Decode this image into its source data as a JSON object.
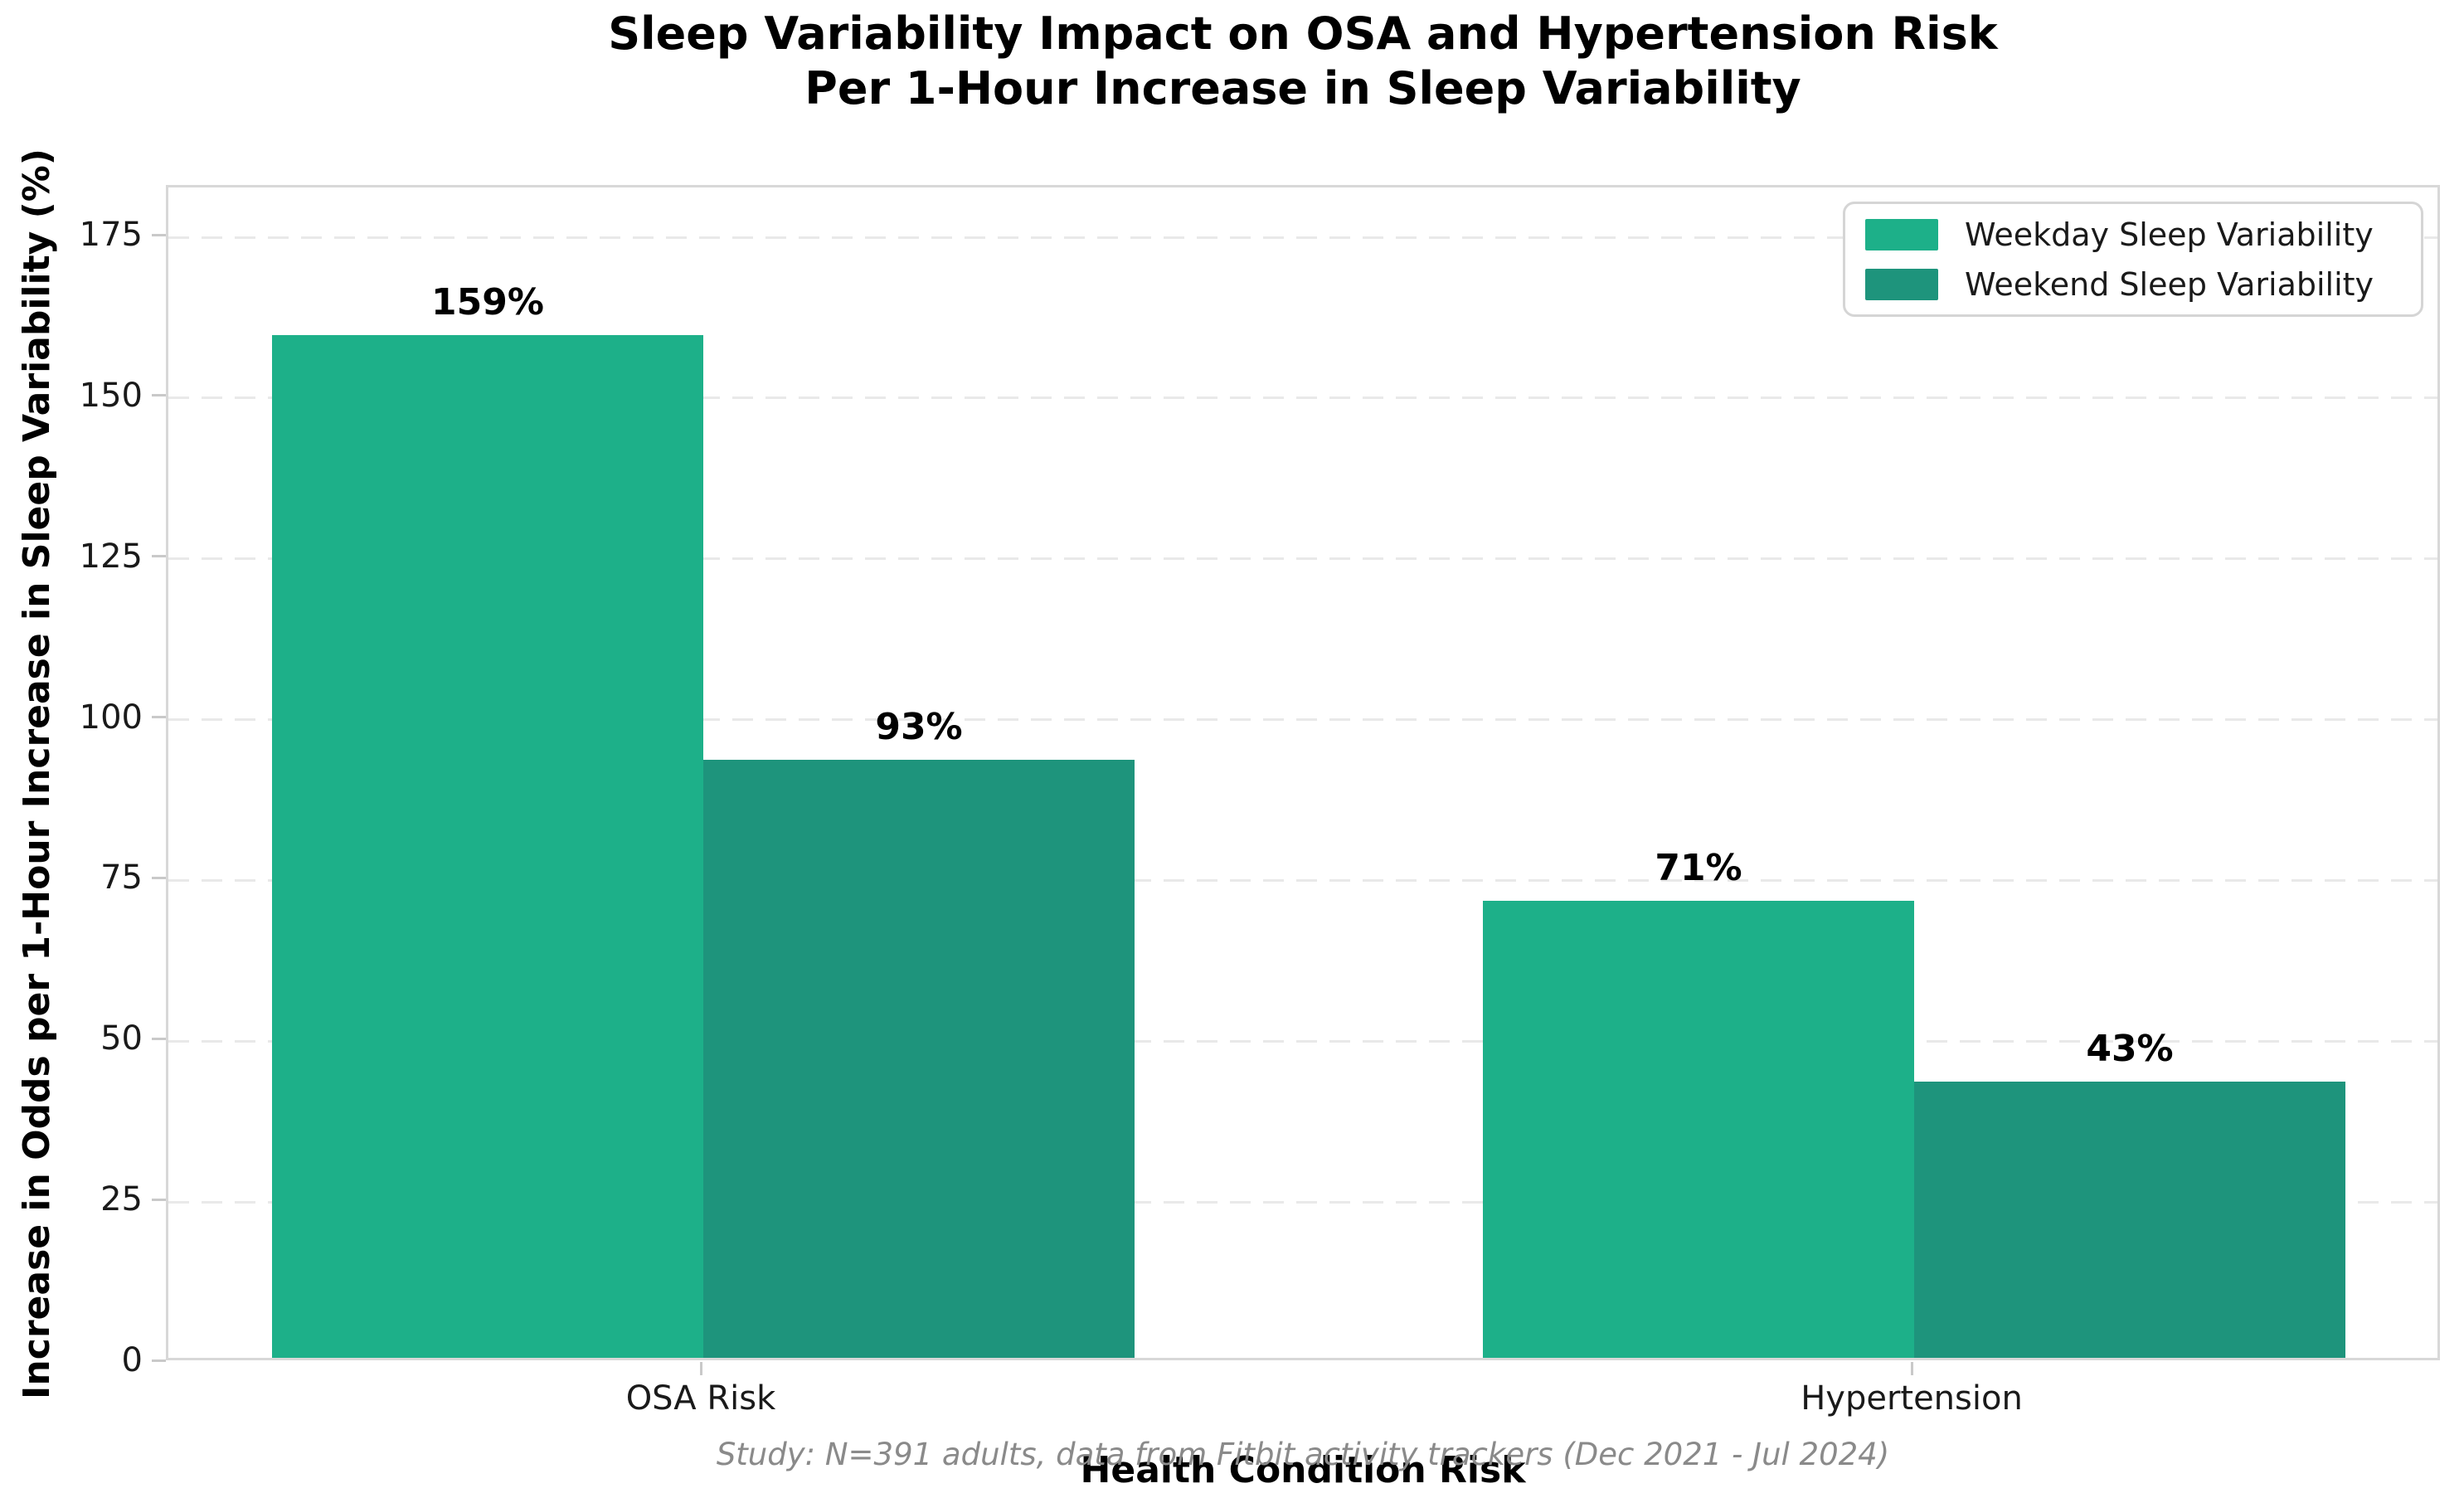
{
  "chart_data": {
    "type": "bar",
    "title": "Sleep Variability Impact on OSA and Hypertension Risk Per 1-Hour Increase in Sleep Variability",
    "title_lines": [
      "Sleep Variability Impact on OSA and Hypertension Risk",
      "Per 1-Hour Increase in Sleep Variability"
    ],
    "xlabel": "Health Condition Risk",
    "ylabel": "Increase in Odds per 1-Hour Increase in Sleep Variability (%)",
    "categories": [
      "OSA Risk",
      "Hypertension"
    ],
    "series": [
      {
        "name": "Weekday Sleep Variability",
        "color": "#1db089",
        "values": [
          159,
          71
        ],
        "labels": [
          "159%",
          "71%"
        ]
      },
      {
        "name": "Weekend Sleep Variability",
        "color": "#1e947c",
        "values": [
          93,
          43
        ],
        "labels": [
          "93%",
          "43%"
        ]
      }
    ],
    "yticks": [
      0,
      25,
      50,
      75,
      100,
      125,
      150,
      175
    ],
    "ylim": [
      0,
      182.7
    ],
    "grid": "horizontal-dashed",
    "legend_position": "upper-right",
    "footnote": "Study: N=391 adults, data from Fitbit activity trackers (Dec 2021 - Jul 2024)"
  },
  "colors": {
    "weekday_bar": "#1db089",
    "weekend_bar": "#1e947c",
    "gridline": "#e9e9e9",
    "axis_spine": "#d8d8d8",
    "footnote_text": "#8a8a8a"
  }
}
